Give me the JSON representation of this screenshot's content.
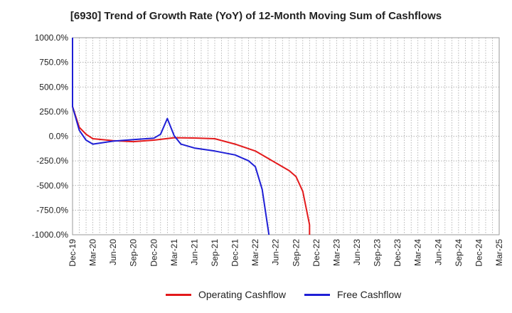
{
  "chart_data": {
    "type": "line",
    "title": "[6930]  Trend of Growth Rate (YoY) of 12-Month Moving Sum of Cashflows",
    "xlabel": "",
    "ylabel": "",
    "x_tick_labels": [
      "Dec-19",
      "Mar-20",
      "Jun-20",
      "Sep-20",
      "Dec-20",
      "Mar-21",
      "Jun-21",
      "Sep-21",
      "Dec-21",
      "Mar-22",
      "Jun-22",
      "Sep-22",
      "Dec-22",
      "Mar-23",
      "Jun-23",
      "Sep-23",
      "Dec-23",
      "Mar-24",
      "Jun-24",
      "Sep-24",
      "Dec-24",
      "Mar-25"
    ],
    "y_tick_labels": [
      "1000.0%",
      "750.0%",
      "500.0%",
      "250.0%",
      "0.0%",
      "-250.0%",
      "-500.0%",
      "-750.0%",
      "-1000.0%"
    ],
    "ylim": [
      -1000,
      1000
    ],
    "x_range": [
      "Dec-19",
      "Mar-25"
    ],
    "grid": true,
    "legend_position": "bottom",
    "series": [
      {
        "name": "Operating Cashflow",
        "color": "#e31a1c",
        "points": [
          [
            "Dec-19",
            300
          ],
          [
            "Jan-20",
            90
          ],
          [
            "Feb-20",
            20
          ],
          [
            "Mar-20",
            -25
          ],
          [
            "Jun-20",
            -45
          ],
          [
            "Sep-20",
            -55
          ],
          [
            "Dec-20",
            -40
          ],
          [
            "Mar-21",
            -15
          ],
          [
            "Jun-21",
            -18
          ],
          [
            "Sep-21",
            -25
          ],
          [
            "Dec-21",
            -80
          ],
          [
            "Mar-22",
            -150
          ],
          [
            "Jun-22",
            -270
          ],
          [
            "Aug-22",
            -350
          ],
          [
            "Sep-22",
            -410
          ],
          [
            "Oct-22",
            -560
          ],
          [
            "Nov-22",
            -900
          ],
          [
            "Nov-22",
            -1000
          ]
        ]
      },
      {
        "name": "Free Cashflow",
        "color": "#1f1fd6",
        "points": [
          [
            "Dec-19",
            1000
          ],
          [
            "Dec-19",
            300
          ],
          [
            "Jan-20",
            60
          ],
          [
            "Feb-20",
            -40
          ],
          [
            "Mar-20",
            -80
          ],
          [
            "Jun-20",
            -50
          ],
          [
            "Sep-20",
            -35
          ],
          [
            "Dec-20",
            -20
          ],
          [
            "Jan-21",
            20
          ],
          [
            "Feb-21",
            180
          ],
          [
            "Mar-21",
            5
          ],
          [
            "Apr-21",
            -80
          ],
          [
            "Jun-21",
            -120
          ],
          [
            "Sep-21",
            -150
          ],
          [
            "Dec-21",
            -190
          ],
          [
            "Feb-22",
            -250
          ],
          [
            "Mar-22",
            -310
          ],
          [
            "Apr-22",
            -540
          ],
          [
            "May-22",
            -1000
          ]
        ]
      }
    ]
  }
}
